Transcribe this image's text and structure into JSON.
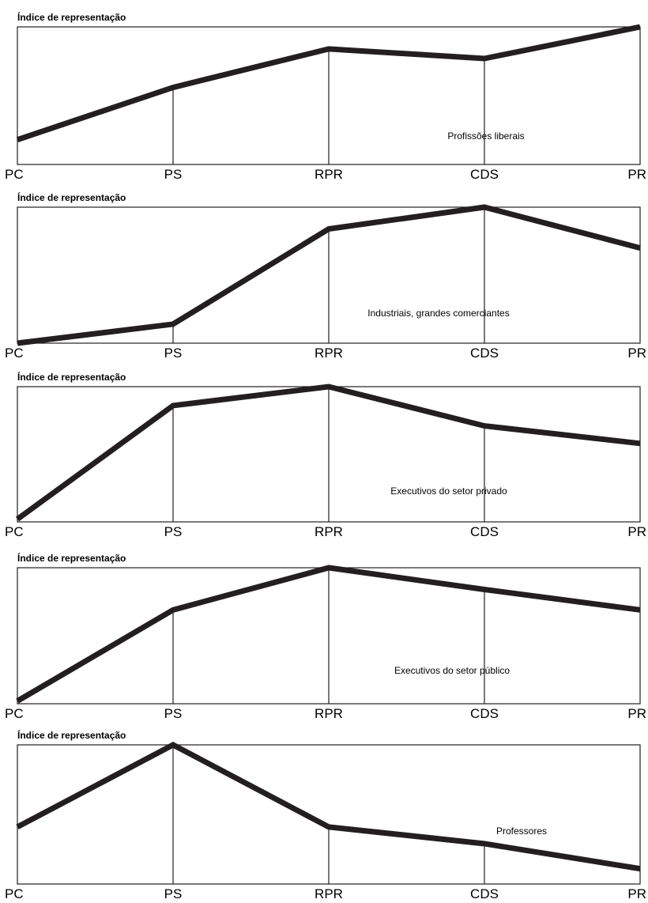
{
  "chart_data": [
    {
      "type": "line",
      "title": "",
      "ylabel": "Índice de representação",
      "xlabel": "",
      "categories": [
        "PC",
        "PS",
        "RPR",
        "CDS",
        "PR"
      ],
      "series": [
        {
          "name": "Profissões liberais",
          "values": [
            0.18,
            0.56,
            0.84,
            0.77,
            1.0
          ]
        }
      ],
      "ylim": [
        0,
        1
      ],
      "grid": false,
      "color": "#231f20"
    },
    {
      "type": "line",
      "title": "",
      "ylabel": "Índice de representação",
      "xlabel": "",
      "categories": [
        "PC",
        "PS",
        "RPR",
        "CDS",
        "PR"
      ],
      "series": [
        {
          "name": "Industriais, grandes comerciantes",
          "values": [
            0.0,
            0.14,
            0.84,
            1.0,
            0.7
          ]
        }
      ],
      "ylim": [
        0,
        1
      ],
      "grid": false,
      "color": "#231f20"
    },
    {
      "type": "line",
      "title": "",
      "ylabel": "Índice de representação",
      "xlabel": "",
      "categories": [
        "PC",
        "PS",
        "RPR",
        "CDS",
        "PR"
      ],
      "series": [
        {
          "name": "Executivos do setor privado",
          "values": [
            0.02,
            0.86,
            1.0,
            0.71,
            0.58
          ]
        }
      ],
      "ylim": [
        0,
        1
      ],
      "grid": false,
      "color": "#231f20"
    },
    {
      "type": "line",
      "title": "",
      "ylabel": "Índice de representação",
      "xlabel": "",
      "categories": [
        "PC",
        "PS",
        "RPR",
        "CDS",
        "PR"
      ],
      "series": [
        {
          "name": "Executivos do setor público",
          "values": [
            0.02,
            0.69,
            1.0,
            0.84,
            0.69
          ]
        }
      ],
      "ylim": [
        0,
        1
      ],
      "grid": false,
      "color": "#231f20"
    },
    {
      "type": "line",
      "title": "",
      "ylabel": "Índice de representação",
      "xlabel": "",
      "categories": [
        "PC",
        "PS",
        "RPR",
        "CDS",
        "PR"
      ],
      "series": [
        {
          "name": "Professores",
          "values": [
            0.41,
            1.0,
            0.41,
            0.29,
            0.11
          ]
        }
      ],
      "ylim": [
        0,
        1
      ],
      "grid": false,
      "color": "#231f20"
    }
  ]
}
